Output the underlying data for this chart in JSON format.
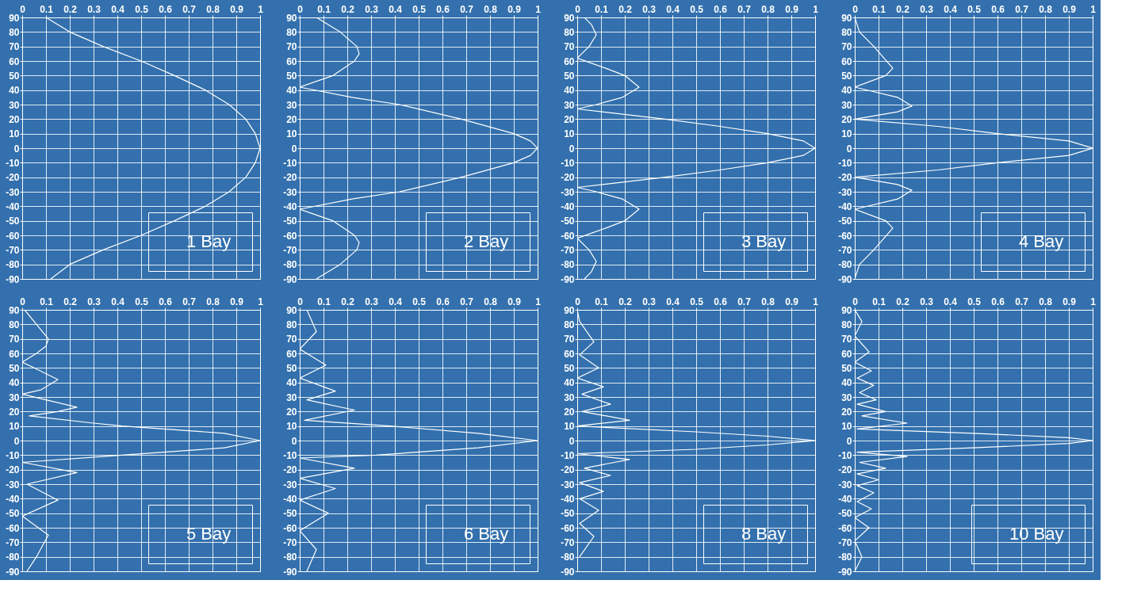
{
  "chart_data": [
    {
      "type": "line",
      "legend": "bottom right",
      "xlim": [
        0,
        1
      ],
      "xticks": [
        0,
        0.1,
        0.2,
        0.3,
        0.4,
        0.5,
        0.6,
        0.7,
        0.8,
        0.9,
        1
      ],
      "ylim": [
        -90,
        90
      ],
      "yticks": [
        -90,
        -80,
        -70,
        -60,
        -50,
        -40,
        -30,
        -20,
        -10,
        0,
        10,
        20,
        30,
        40,
        50,
        60,
        70,
        80,
        90
      ],
      "grid": true,
      "series": [
        {
          "name": "1 Bay",
          "color": "#ffffff",
          "x": [
            0.1,
            0.2,
            0.34,
            0.5,
            0.64,
            0.77,
            0.87,
            0.94,
            0.98,
            1,
            0.98,
            0.94,
            0.87,
            0.77,
            0.64,
            0.5,
            0.34,
            0.2,
            0.12
          ],
          "values": [
            90,
            80,
            70,
            60,
            50,
            40,
            30,
            20,
            10,
            0,
            -10,
            -20,
            -30,
            -40,
            -50,
            -60,
            -70,
            -80,
            -90
          ]
        }
      ]
    },
    {
      "type": "line",
      "legend": "bottom right",
      "xlim": [
        0,
        1
      ],
      "xticks": [
        0,
        0.1,
        0.2,
        0.3,
        0.4,
        0.5,
        0.6,
        0.7,
        0.8,
        0.9,
        1
      ],
      "ylim": [
        -90,
        90
      ],
      "yticks": [
        -90,
        -80,
        -70,
        -60,
        -50,
        -40,
        -30,
        -20,
        -10,
        0,
        10,
        20,
        30,
        40,
        50,
        60,
        70,
        80,
        90
      ],
      "grid": true,
      "series": [
        {
          "name": "2 Bay",
          "color": "#ffffff",
          "x": [
            0.07,
            0.17,
            0.24,
            0.25,
            0.23,
            0.14,
            0,
            0.22,
            0.42,
            0.68,
            0.9,
            0.97,
            1,
            0.97,
            0.9,
            0.68,
            0.42,
            0.22,
            0,
            0.14,
            0.23,
            0.25,
            0.24,
            0.17,
            0.07
          ],
          "values": [
            90,
            80,
            70,
            65,
            60,
            50,
            42,
            35,
            30,
            20,
            10,
            5,
            0,
            -5,
            -10,
            -20,
            -30,
            -35,
            -42,
            -50,
            -60,
            -65,
            -70,
            -80,
            -90
          ]
        }
      ]
    },
    {
      "type": "line",
      "legend": "bottom right",
      "xlim": [
        0,
        1
      ],
      "xticks": [
        0,
        0.1,
        0.2,
        0.3,
        0.4,
        0.5,
        0.6,
        0.7,
        0.8,
        0.9,
        1
      ],
      "ylim": [
        -90,
        90
      ],
      "yticks": [
        -90,
        -80,
        -70,
        -60,
        -50,
        -40,
        -30,
        -20,
        -10,
        0,
        10,
        20,
        30,
        40,
        50,
        60,
        70,
        80,
        90
      ],
      "grid": true,
      "series": [
        {
          "name": "3 Bay",
          "color": "#ffffff",
          "x": [
            0.03,
            0.06,
            0.08,
            0.05,
            0,
            0.12,
            0.2,
            0.26,
            0.19,
            0.08,
            0,
            0.37,
            0.6,
            0.8,
            0.95,
            1,
            0.95,
            0.8,
            0.6,
            0.37,
            0,
            0.08,
            0.19,
            0.26,
            0.2,
            0.12,
            0,
            0.05,
            0.08,
            0.06,
            0.03
          ],
          "values": [
            90,
            85,
            78,
            70,
            62,
            55,
            50,
            42,
            35,
            30,
            27,
            20,
            15,
            10,
            5,
            0,
            -5,
            -10,
            -15,
            -20,
            -27,
            -30,
            -35,
            -42,
            -50,
            -55,
            -62,
            -70,
            -78,
            -85,
            -90
          ]
        }
      ]
    },
    {
      "type": "line",
      "legend": "bottom right",
      "xlim": [
        0,
        1
      ],
      "xticks": [
        0,
        0.1,
        0.2,
        0.3,
        0.4,
        0.5,
        0.6,
        0.7,
        0.8,
        0.9,
        1
      ],
      "ylim": [
        -90,
        90
      ],
      "yticks": [
        -90,
        -80,
        -70,
        -60,
        -50,
        -40,
        -30,
        -20,
        -10,
        0,
        10,
        20,
        30,
        40,
        50,
        60,
        70,
        80,
        90
      ],
      "grid": true,
      "series": [
        {
          "name": "4 Bay",
          "color": "#ffffff",
          "x": [
            0,
            0.02,
            0.08,
            0.16,
            0.13,
            0,
            0.18,
            0.24,
            0.18,
            0,
            0.35,
            0.6,
            0.9,
            1,
            0.9,
            0.6,
            0.35,
            0,
            0.18,
            0.24,
            0.18,
            0,
            0.13,
            0.16,
            0.08,
            0.02,
            0
          ],
          "values": [
            90,
            80,
            70,
            55,
            50,
            42,
            35,
            29,
            25,
            20,
            15,
            10,
            5,
            0,
            -5,
            -10,
            -15,
            -20,
            -25,
            -29,
            -35,
            -42,
            -50,
            -55,
            -70,
            -80,
            -90
          ]
        }
      ]
    },
    {
      "type": "line",
      "legend": "bottom right",
      "xlim": [
        0,
        1
      ],
      "xticks": [
        0,
        0.1,
        0.2,
        0.3,
        0.4,
        0.5,
        0.6,
        0.7,
        0.8,
        0.9,
        1
      ],
      "ylim": [
        -90,
        90
      ],
      "yticks": [
        -90,
        -80,
        -70,
        -60,
        -50,
        -40,
        -30,
        -20,
        -10,
        0,
        10,
        20,
        30,
        40,
        50,
        60,
        70,
        80,
        90
      ],
      "grid": true,
      "series": [
        {
          "name": "5 Bay",
          "color": "#ffffff",
          "x": [
            0.01,
            0.06,
            0.11,
            0.1,
            0.06,
            0,
            0.05,
            0.15,
            0.08,
            0,
            0.1,
            0.23,
            0.15,
            0.03,
            0.3,
            0.42,
            0.85,
            1,
            0.85,
            0.42,
            0,
            0.23,
            0.02,
            0.15,
            0,
            0.11,
            0.06,
            0.02
          ],
          "values": [
            90,
            80,
            70,
            65,
            60,
            54,
            50,
            42,
            35,
            32,
            28,
            23,
            20,
            17,
            12,
            10,
            5,
            0,
            -5,
            -10,
            -15,
            -22,
            -30,
            -41,
            -52,
            -65,
            -80,
            -90
          ]
        }
      ]
    },
    {
      "type": "line",
      "legend": "bottom right",
      "xlim": [
        0,
        1
      ],
      "xticks": [
        0,
        0.1,
        0.2,
        0.3,
        0.4,
        0.5,
        0.6,
        0.7,
        0.8,
        0.9,
        1
      ],
      "ylim": [
        -90,
        90
      ],
      "yticks": [
        -90,
        -80,
        -70,
        -60,
        -50,
        -40,
        -30,
        -20,
        -10,
        0,
        10,
        20,
        30,
        40,
        50,
        60,
        70,
        80,
        90
      ],
      "grid": true,
      "series": [
        {
          "name": "6 Bay",
          "color": "#ffffff",
          "x": [
            0.03,
            0.07,
            0,
            0.11,
            0,
            0.15,
            0.03,
            0.23,
            0.02,
            0.38,
            0.75,
            1,
            0.75,
            0.32,
            0,
            0.23,
            0,
            0.15,
            0,
            0.12,
            0,
            0.07,
            0.03
          ],
          "values": [
            90,
            75,
            63,
            52,
            43,
            34,
            28,
            21,
            14,
            10,
            5,
            0,
            -5,
            -10,
            -12,
            -19,
            -26,
            -33,
            -41,
            -50,
            -62,
            -75,
            -90
          ]
        }
      ]
    },
    {
      "type": "line",
      "legend": "bottom right",
      "xlim": [
        0,
        1
      ],
      "xticks": [
        0,
        0.1,
        0.2,
        0.3,
        0.4,
        0.5,
        0.6,
        0.7,
        0.8,
        0.9,
        1
      ],
      "ylim": [
        -90,
        90
      ],
      "yticks": [
        -90,
        -80,
        -70,
        -60,
        -50,
        -40,
        -30,
        -20,
        -10,
        0,
        10,
        20,
        30,
        40,
        50,
        60,
        70,
        80,
        90
      ],
      "grid": true,
      "series": [
        {
          "name": "8 Bay",
          "color": "#ffffff",
          "x": [
            0,
            0.01,
            0.07,
            0.01,
            0.09,
            0,
            0.11,
            0.02,
            0.14,
            0.02,
            0.22,
            0,
            0.5,
            0.8,
            1,
            0.8,
            0.5,
            0,
            0.22,
            0.03,
            0.14,
            0.01,
            0.11,
            0.01,
            0.09,
            0.01,
            0.07,
            0.01
          ],
          "values": [
            90,
            82,
            68,
            59,
            50,
            43,
            37,
            32,
            25,
            20,
            14,
            10,
            6,
            3,
            0,
            -3,
            -6,
            -9,
            -13,
            -19,
            -24,
            -29,
            -35,
            -40,
            -48,
            -57,
            -66,
            -80
          ]
        }
      ]
    },
    {
      "type": "line",
      "legend": "bottom right",
      "xlim": [
        0,
        1
      ],
      "xticks": [
        0,
        0.1,
        0.2,
        0.3,
        0.4,
        0.5,
        0.6,
        0.7,
        0.8,
        0.9,
        1
      ],
      "ylim": [
        -90,
        90
      ],
      "yticks": [
        -90,
        -80,
        -70,
        -60,
        -50,
        -40,
        -30,
        -20,
        -10,
        0,
        10,
        20,
        30,
        40,
        50,
        60,
        70,
        80,
        90
      ],
      "grid": true,
      "series": [
        {
          "name": "10 Bay",
          "color": "#ffffff",
          "x": [
            0,
            0.03,
            0,
            0.06,
            0,
            0.07,
            0.01,
            0.08,
            0.02,
            0.09,
            0.01,
            0.13,
            0.03,
            0.22,
            0.01,
            0.5,
            0.9,
            1,
            0.9,
            0.5,
            0.01,
            0.22,
            0.02,
            0.13,
            0.01,
            0.1,
            0.01,
            0.08,
            0.01,
            0.07,
            0,
            0.06,
            0,
            0.03,
            0
          ],
          "values": [
            90,
            82,
            72,
            61,
            54,
            48,
            43,
            38,
            33,
            28,
            25,
            20,
            17,
            12,
            8,
            5,
            2,
            0,
            -2,
            -5,
            -8,
            -11,
            -15,
            -19,
            -23,
            -27,
            -31,
            -36,
            -42,
            -47,
            -53,
            -60,
            -69,
            -80,
            -90
          ]
        }
      ]
    }
  ]
}
